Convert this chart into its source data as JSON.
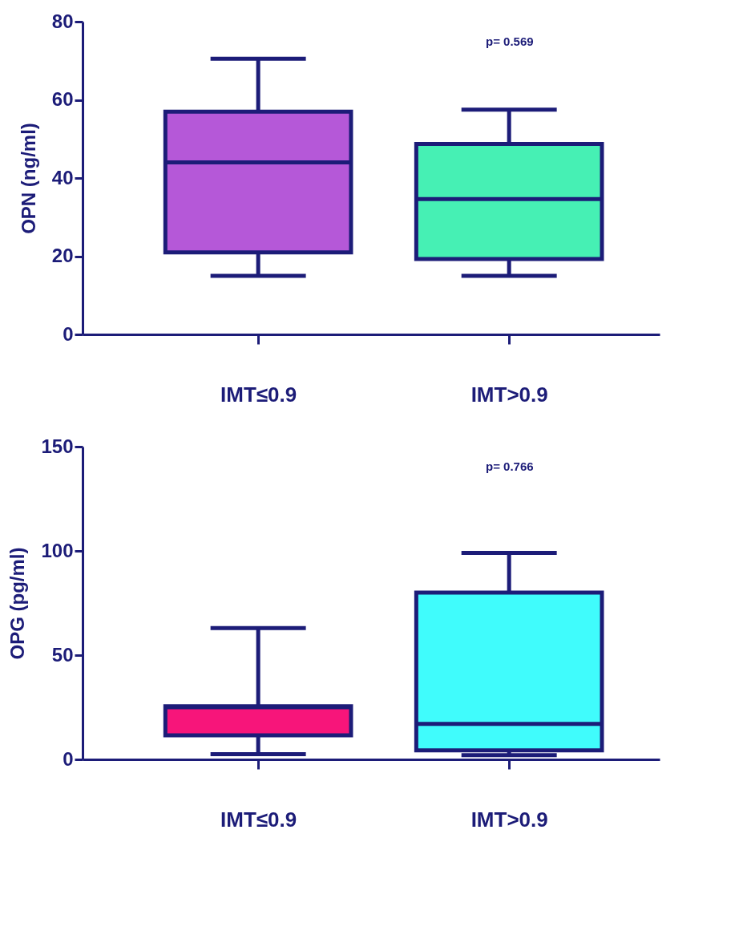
{
  "chart_data": [
    {
      "type": "box",
      "ylabel": "OPN (ng/ml)",
      "categories": [
        "IMT≤0.9",
        "IMT>0.9"
      ],
      "boxes": [
        {
          "low": 15,
          "q1": 21,
          "median": 44,
          "q3": 57,
          "high": 70.5
        },
        {
          "low": 15,
          "q1": 19.3,
          "median": 34.6,
          "q3": 48.7,
          "high": 57.5
        }
      ],
      "colors": [
        "#b558d8",
        "#46f0b4"
      ],
      "ylim": [
        0,
        80
      ],
      "yticks": [
        0,
        20,
        40,
        60,
        80
      ],
      "grid": false,
      "annotations": [
        "p= 0.569"
      ]
    },
    {
      "type": "box",
      "ylabel": "OPG (pg/ml)",
      "categories": [
        "IMT≤0.9",
        "IMT>0.9"
      ],
      "boxes": [
        {
          "low": 2.5,
          "q1": 11.5,
          "median": 25,
          "q3": 25.5,
          "high": 63
        },
        {
          "low": 2,
          "q1": 4.3,
          "median": 17,
          "q3": 80,
          "high": 99
        }
      ],
      "colors": [
        "#f7157a",
        "#40fcfc"
      ],
      "ylim": [
        0,
        150
      ],
      "yticks": [
        0,
        50,
        100,
        150
      ],
      "grid": false,
      "annotations": [
        "p= 0.766"
      ]
    }
  ]
}
